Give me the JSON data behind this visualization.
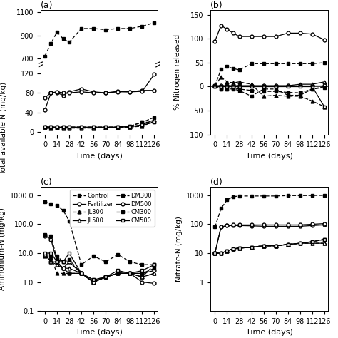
{
  "time": [
    0,
    7,
    14,
    21,
    28,
    42,
    56,
    70,
    84,
    98,
    112,
    126
  ],
  "xticks": [
    0,
    14,
    28,
    42,
    56,
    70,
    84,
    98,
    112,
    126
  ],
  "series_order": [
    "Control",
    "Fertilizer",
    "JL300",
    "JL500",
    "DM300",
    "DM500",
    "CM300",
    "CM500"
  ],
  "series_style": {
    "Control": {
      "marker": "s",
      "filled": true,
      "ls": "dotted"
    },
    "Fertilizer": {
      "marker": "o",
      "filled": false,
      "ls": "solid"
    },
    "JL300": {
      "marker": "^",
      "filled": true,
      "ls": "dotted"
    },
    "JL500": {
      "marker": "^",
      "filled": false,
      "ls": "solid"
    },
    "DM300": {
      "marker": "s",
      "filled": true,
      "ls": "dotted"
    },
    "DM500": {
      "marker": "o",
      "filled": false,
      "ls": "solid"
    },
    "CM300": {
      "marker": "s",
      "filled": true,
      "ls": "dotted"
    },
    "CM500": {
      "marker": "s",
      "filled": false,
      "ls": "solid"
    }
  },
  "panel_a_top": {
    "title": "(a)",
    "ylabel": "Total available N (mg/kg)",
    "series": {
      "DM300": {
        "y": [
          720,
          830,
          930,
          870,
          840,
          960,
          960,
          950,
          960,
          960,
          980,
          1010
        ]
      }
    },
    "ylim": [
      660,
      1120
    ],
    "yticks": [
      700,
      900,
      1100
    ]
  },
  "panel_a_bot": {
    "xlabel": "Time (days)",
    "series": {
      "Control": {
        "y": [
          10,
          10,
          10,
          10,
          10,
          10,
          10,
          10,
          10,
          12,
          20,
          30
        ]
      },
      "Fertilizer": {
        "y": [
          45,
          80,
          80,
          75,
          82,
          88,
          82,
          80,
          83,
          82,
          85,
          85
        ]
      },
      "JL300": {
        "y": [
          10,
          7,
          9,
          8,
          8,
          8,
          8,
          9,
          9,
          10,
          12,
          22
        ]
      },
      "JL500": {
        "y": [
          10,
          10,
          10,
          9,
          9,
          9,
          9,
          9,
          10,
          11,
          15,
          25
        ]
      },
      "DM500": {
        "y": [
          70,
          80,
          82,
          80,
          80,
          82,
          80,
          80,
          82,
          82,
          83,
          118
        ]
      },
      "CM300": {
        "y": [
          10,
          10,
          10,
          10,
          10,
          10,
          10,
          10,
          10,
          12,
          20,
          20
        ]
      },
      "CM500": {
        "y": [
          10,
          10,
          10,
          10,
          10,
          10,
          10,
          10,
          10,
          11,
          14,
          20
        ]
      }
    },
    "ylim": [
      -5,
      135
    ],
    "yticks": [
      0,
      40,
      80,
      120
    ]
  },
  "panel_b": {
    "title": "(b)",
    "ylabel": "% Nitrogen released",
    "xlabel": "Time (days)",
    "series": {
      "Control": {
        "y": [
          0,
          -5,
          -5,
          -3,
          -5,
          -8,
          -10,
          -10,
          -12,
          -13,
          -5,
          0
        ]
      },
      "Fertilizer": {
        "y": [
          95,
          128,
          120,
          112,
          105,
          105,
          105,
          105,
          112,
          112,
          110,
          98
        ]
      },
      "JL300": {
        "y": [
          2,
          20,
          10,
          8,
          10,
          5,
          -20,
          -18,
          -20,
          -20,
          -30,
          -42
        ]
      },
      "JL500": {
        "y": [
          2,
          2,
          2,
          2,
          2,
          2,
          2,
          2,
          2,
          5,
          5,
          10
        ]
      },
      "DM300": {
        "y": [
          2,
          36,
          42,
          38,
          35,
          48,
          48,
          48,
          48,
          48,
          48,
          50
        ]
      },
      "DM500": {
        "y": [
          2,
          2,
          2,
          2,
          2,
          2,
          2,
          2,
          2,
          2,
          2,
          2
        ]
      },
      "CM300": {
        "y": [
          0,
          -5,
          -5,
          -5,
          -8,
          -20,
          -5,
          -5,
          -18,
          -18,
          -5,
          -2
        ]
      },
      "CM500": {
        "y": [
          0,
          0,
          0,
          0,
          0,
          0,
          0,
          0,
          0,
          0,
          0,
          -42
        ]
      }
    },
    "ylim": [
      -100,
      160
    ],
    "yticks": [
      -100,
      -50,
      0,
      50,
      100,
      150
    ]
  },
  "panel_c": {
    "title": "(c)",
    "ylabel": "Ammonium-N (mg/kg)",
    "xlabel": "Time (days)",
    "series": {
      "Control": {
        "y": [
          9,
          8,
          8,
          5,
          5,
          2,
          1,
          1.5,
          2,
          2,
          1.5,
          4
        ]
      },
      "Fertilizer": {
        "y": [
          9,
          5,
          5,
          3,
          2,
          2,
          1,
          1.5,
          2,
          2,
          1,
          0.9
        ]
      },
      "JL300": {
        "y": [
          8,
          7,
          2,
          2,
          2,
          2,
          1,
          1.5,
          2,
          2,
          1.5,
          2
        ]
      },
      "JL500": {
        "y": [
          9,
          5,
          4,
          3,
          3,
          2,
          1,
          1.5,
          2,
          2,
          1.5,
          2
        ]
      },
      "DM300": {
        "y": [
          600,
          500,
          450,
          300,
          130,
          4,
          8,
          5,
          9,
          5,
          4,
          4
        ]
      },
      "DM500": {
        "y": [
          40,
          30,
          5,
          3,
          5,
          2,
          1,
          1.5,
          2,
          2,
          2,
          2.5
        ]
      },
      "CM300": {
        "y": [
          45,
          40,
          6,
          5,
          6,
          2,
          1.2,
          1.5,
          2,
          2,
          2,
          3
        ]
      },
      "CM500": {
        "y": [
          10,
          10,
          5,
          5,
          10,
          2,
          1.2,
          1.5,
          2.5,
          2,
          2.5,
          4
        ]
      }
    },
    "ylim": [
      0.1,
      2000
    ],
    "yticks": [
      0.1,
      1,
      10,
      100,
      1000
    ]
  },
  "panel_d": {
    "title": "(d)",
    "ylabel": "Nitrate-N (mg/kg)",
    "xlabel": "Time (days)",
    "series": {
      "Control": {
        "y": [
          10,
          10,
          12,
          14,
          15,
          16,
          18,
          18,
          20,
          22,
          25,
          30
        ]
      },
      "Fertilizer": {
        "y": [
          10,
          80,
          90,
          90,
          90,
          88,
          85,
          85,
          85,
          85,
          90,
          95
        ]
      },
      "JL300": {
        "y": [
          10,
          10,
          12,
          14,
          15,
          16,
          18,
          18,
          20,
          22,
          22,
          22
        ]
      },
      "JL500": {
        "y": [
          10,
          10,
          12,
          14,
          15,
          16,
          18,
          18,
          20,
          22,
          22,
          22
        ]
      },
      "DM300": {
        "y": [
          80,
          350,
          700,
          900,
          950,
          950,
          950,
          950,
          980,
          980,
          990,
          1000
        ]
      },
      "DM500": {
        "y": [
          10,
          80,
          90,
          95,
          95,
          95,
          95,
          95,
          95,
          95,
          100,
          105
        ]
      },
      "CM300": {
        "y": [
          10,
          10,
          12,
          14,
          15,
          16,
          18,
          18,
          20,
          22,
          25,
          30
        ]
      },
      "CM500": {
        "y": [
          10,
          10,
          12,
          14,
          15,
          16,
          18,
          18,
          20,
          22,
          25,
          30
        ]
      }
    },
    "ylim": [
      0.1,
      2000
    ],
    "yticks": [
      1,
      10,
      100,
      1000
    ]
  }
}
